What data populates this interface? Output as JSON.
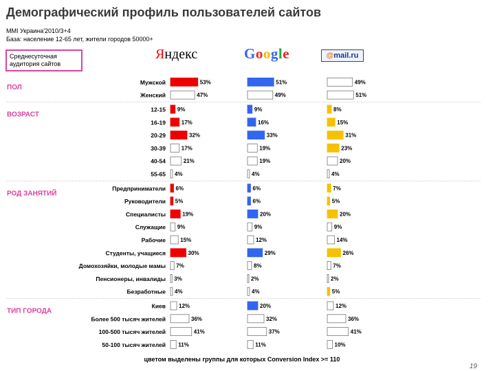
{
  "title": "Демографический профиль пользователей сайтов",
  "subtitle_line1": "MMI Украина'2010/3+4",
  "subtitle_line2": "База: население 12-65 лет, жители городов 50000+",
  "audience_box": {
    "line1": "Среднесуточная",
    "line2": "аудитория сайтов"
  },
  "brands": {
    "yandex_first": "Я",
    "yandex_rest": "ндекс",
    "google": "Google",
    "mail_at": "@",
    "mail_rest": "mail.ru"
  },
  "footnote": "цветом выделены группы для которых Conversion Index >= 110",
  "page_number": "19",
  "colors": {
    "yandex": "#ee0000",
    "google": "#3366ee",
    "mail": "#f5c200",
    "plain": "#ffffff",
    "accent": "#d9439c",
    "grid": "#999999"
  },
  "chart_data": {
    "type": "bar",
    "orientation": "horizontal",
    "panels": [
      "Яндекс",
      "Google",
      "mail.ru"
    ],
    "sections": [
      {
        "name": "ПОЛ",
        "rows": [
          {
            "label": "Мужской",
            "values": [
              53,
              51,
              49
            ],
            "highlight": [
              true,
              true,
              false
            ]
          },
          {
            "label": "Женский",
            "values": [
              47,
              49,
              51
            ],
            "highlight": [
              false,
              false,
              false
            ]
          }
        ]
      },
      {
        "name": "ВОЗРАСТ",
        "rows": [
          {
            "label": "12-15",
            "values": [
              9,
              9,
              8
            ],
            "highlight": [
              true,
              true,
              true
            ]
          },
          {
            "label": "16-19",
            "values": [
              17,
              16,
              15
            ],
            "highlight": [
              true,
              true,
              true
            ]
          },
          {
            "label": "20-29",
            "values": [
              32,
              33,
              31
            ],
            "highlight": [
              true,
              true,
              true
            ]
          },
          {
            "label": "30-39",
            "values": [
              17,
              19,
              23
            ],
            "highlight": [
              false,
              false,
              true
            ]
          },
          {
            "label": "40-54",
            "values": [
              21,
              19,
              20
            ],
            "highlight": [
              false,
              false,
              false
            ]
          },
          {
            "label": "55-65",
            "values": [
              4,
              4,
              4
            ],
            "highlight": [
              false,
              false,
              false
            ]
          }
        ]
      },
      {
        "name": "РОД ЗАНЯТИЙ",
        "rows": [
          {
            "label": "Предприниматели",
            "values": [
              6,
              6,
              7
            ],
            "highlight": [
              true,
              true,
              true
            ]
          },
          {
            "label": "Руководители",
            "values": [
              5,
              6,
              5
            ],
            "highlight": [
              true,
              true,
              true
            ]
          },
          {
            "label": "Специалисты",
            "values": [
              19,
              20,
              20
            ],
            "highlight": [
              true,
              true,
              true
            ]
          },
          {
            "label": "Служащие",
            "values": [
              9,
              9,
              9
            ],
            "highlight": [
              false,
              false,
              false
            ]
          },
          {
            "label": "Рабочие",
            "values": [
              15,
              12,
              14
            ],
            "highlight": [
              false,
              false,
              false
            ]
          },
          {
            "label": "Студенты, учащиеся",
            "values": [
              30,
              29,
              26
            ],
            "highlight": [
              true,
              true,
              true
            ]
          },
          {
            "label": "Домохозяйки, молодые мамы",
            "values": [
              7,
              8,
              7
            ],
            "highlight": [
              false,
              false,
              false
            ]
          },
          {
            "label": "Пенсионеры, инвалиды",
            "values": [
              3,
              2,
              2
            ],
            "highlight": [
              false,
              false,
              false
            ]
          },
          {
            "label": "Безработные",
            "values": [
              4,
              4,
              5
            ],
            "highlight": [
              false,
              false,
              true
            ]
          }
        ]
      },
      {
        "name": "ТИП ГОРОДА",
        "rows": [
          {
            "label": "Киев",
            "values": [
              12,
              20,
              12
            ],
            "highlight": [
              false,
              true,
              false
            ]
          },
          {
            "label": "Более 500 тысяч жителей",
            "values": [
              36,
              32,
              36
            ],
            "highlight": [
              false,
              false,
              false
            ]
          },
          {
            "label": "100-500 тысяч жителей",
            "values": [
              41,
              37,
              41
            ],
            "highlight": [
              false,
              false,
              false
            ]
          },
          {
            "label": "50-100 тысяч жителей",
            "values": [
              11,
              11,
              10
            ],
            "highlight": [
              false,
              false,
              false
            ]
          }
        ]
      }
    ],
    "value_suffix": "%"
  }
}
